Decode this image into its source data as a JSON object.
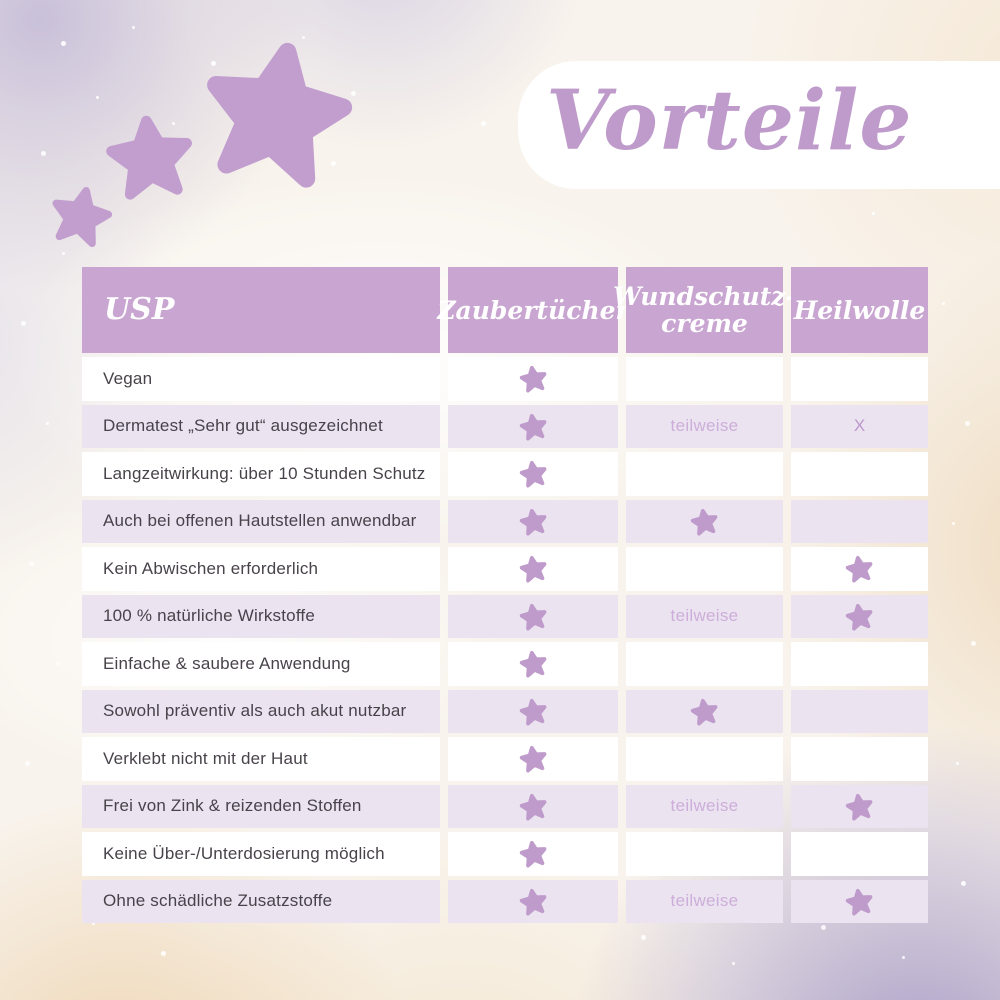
{
  "title": "Vorteile",
  "chart_data": {
    "type": "table",
    "title": "Vorteile",
    "columns": [
      "USP",
      "Zaubertücher",
      "Wundschutz-creme",
      "Heilwolle"
    ],
    "rows": [
      {
        "label": "Vegan",
        "cells": [
          "star",
          "",
          ""
        ]
      },
      {
        "label": "Dermatest „Sehr gut“ ausgezeichnet",
        "cells": [
          "star",
          "teilweise",
          "X"
        ]
      },
      {
        "label": "Langzeitwirkung: über 10 Stunden Schutz",
        "cells": [
          "star",
          "",
          ""
        ]
      },
      {
        "label": "Auch bei offenen Hautstellen anwendbar",
        "cells": [
          "star",
          "star",
          ""
        ]
      },
      {
        "label": "Kein Abwischen erforderlich",
        "cells": [
          "star",
          "",
          "star"
        ]
      },
      {
        "label": "100 % natürliche Wirkstoffe",
        "cells": [
          "star",
          "teilweise",
          "star"
        ]
      },
      {
        "label": "Einfache & saubere Anwendung",
        "cells": [
          "star",
          "",
          ""
        ]
      },
      {
        "label": "Sowohl präventiv als auch akut nutzbar",
        "cells": [
          "star",
          "star",
          ""
        ]
      },
      {
        "label": "Verklebt nicht mit der Haut",
        "cells": [
          "star",
          "",
          ""
        ]
      },
      {
        "label": "Frei von Zink & reizenden Stoffen",
        "cells": [
          "star",
          "teilweise",
          "star"
        ]
      },
      {
        "label": "Keine Über-/Unterdosierung möglich",
        "cells": [
          "star",
          "",
          ""
        ]
      },
      {
        "label": "Ohne schädliche Zusatzstoffe",
        "cells": [
          "star",
          "teilweise",
          "star"
        ]
      }
    ]
  },
  "icons": {
    "cell_star": "five-point-star",
    "decoration": "three-ascending-stars"
  },
  "colors": {
    "header_purple": "#c9a6d1",
    "row_lavender": "#ebe3f0",
    "star_purple": "#bf9bcb",
    "title_purple": "#bf9bcb",
    "teilweise_text": "#cdaeda",
    "x_text": "#bd98cb",
    "label_text": "#48434a"
  }
}
